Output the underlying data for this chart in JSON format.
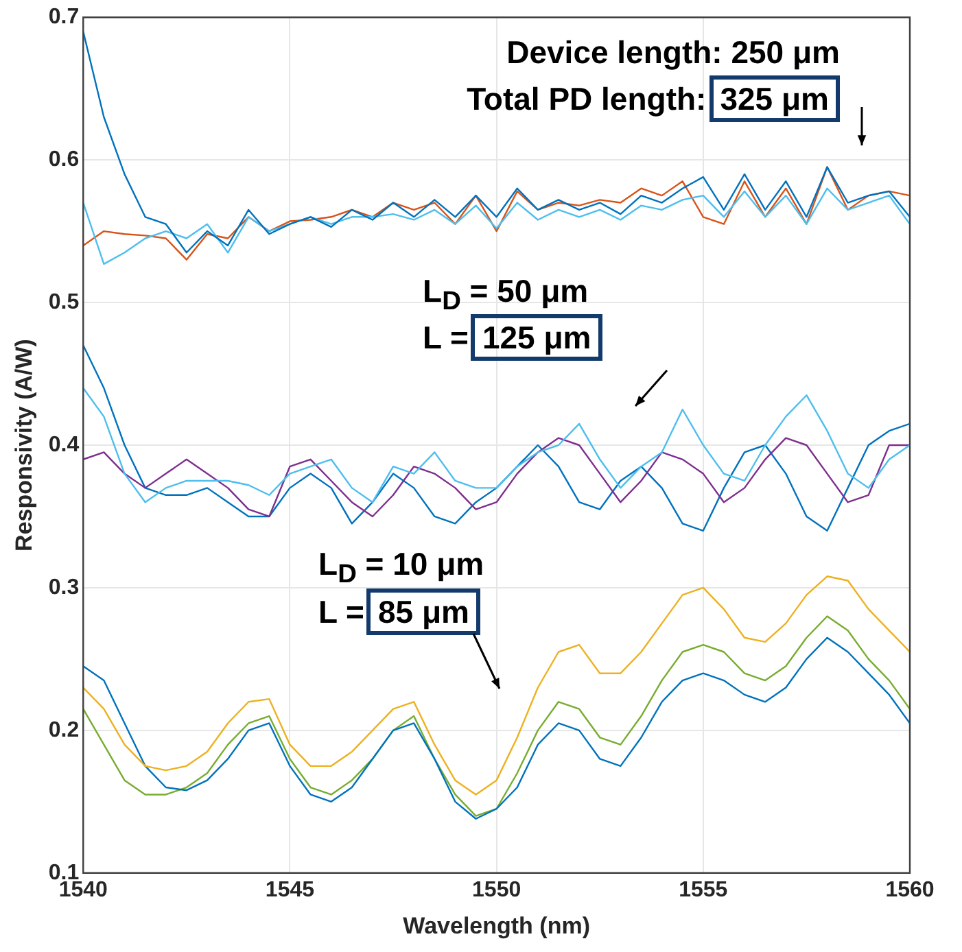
{
  "chart_data": {
    "type": "line",
    "xlabel": "Wavelength (nm)",
    "ylabel": "Responsivity (A/W)",
    "x": [
      1540,
      1540.5,
      1541,
      1541.5,
      1542,
      1542.5,
      1543,
      1543.5,
      1544,
      1544.5,
      1545,
      1545.5,
      1546,
      1546.5,
      1547,
      1547.5,
      1548,
      1548.5,
      1549,
      1549.5,
      1550,
      1550.5,
      1551,
      1551.5,
      1552,
      1552.5,
      1553,
      1553.5,
      1554,
      1554.5,
      1555,
      1555.5,
      1556,
      1556.5,
      1557,
      1557.5,
      1558,
      1558.5,
      1559,
      1559.5,
      1560
    ],
    "xlim": [
      1540,
      1560
    ],
    "xticks": [
      1540,
      1545,
      1550,
      1555,
      1560
    ],
    "ylim": [
      0.1,
      0.7
    ],
    "yticks": [
      0.1,
      0.2,
      0.3,
      0.4,
      0.5,
      0.6,
      0.7
    ],
    "grid": true,
    "legend": false,
    "marker": "none",
    "line_style": "solid",
    "series": [
      {
        "color": "#0072bd",
        "values": [
          0.69,
          0.63,
          0.59,
          0.56,
          0.555,
          0.535,
          0.55,
          0.54,
          0.565,
          0.548,
          0.555,
          0.56,
          0.553,
          0.565,
          0.558,
          0.57,
          0.56,
          0.572,
          0.56,
          0.575,
          0.56,
          0.58,
          0.565,
          0.572,
          0.565,
          0.57,
          0.562,
          0.575,
          0.57,
          0.58,
          0.588,
          0.565,
          0.59,
          0.565,
          0.585,
          0.56,
          0.595,
          0.57,
          0.575,
          0.578,
          0.56
        ]
      },
      {
        "color": "#4dbeee",
        "values": [
          0.57,
          0.527,
          0.535,
          0.545,
          0.55,
          0.545,
          0.555,
          0.535,
          0.56,
          0.55,
          0.555,
          0.56,
          0.555,
          0.56,
          0.56,
          0.562,
          0.558,
          0.565,
          0.555,
          0.568,
          0.552,
          0.57,
          0.558,
          0.565,
          0.56,
          0.565,
          0.558,
          0.568,
          0.565,
          0.572,
          0.575,
          0.56,
          0.578,
          0.56,
          0.575,
          0.555,
          0.58,
          0.565,
          0.57,
          0.575,
          0.555
        ]
      },
      {
        "color": "#d95319",
        "values": [
          0.54,
          0.55,
          0.548,
          0.547,
          0.545,
          0.53,
          0.548,
          0.545,
          0.56,
          0.55,
          0.557,
          0.558,
          0.56,
          0.565,
          0.56,
          0.57,
          0.565,
          0.57,
          0.555,
          0.575,
          0.55,
          0.578,
          0.565,
          0.57,
          0.568,
          0.572,
          0.57,
          0.58,
          0.575,
          0.585,
          0.56,
          0.555,
          0.585,
          0.56,
          0.58,
          0.555,
          0.595,
          0.565,
          0.575,
          0.578,
          0.575
        ]
      },
      {
        "color": "#4dbeee",
        "values": [
          0.44,
          0.42,
          0.38,
          0.36,
          0.37,
          0.375,
          0.375,
          0.375,
          0.372,
          0.365,
          0.38,
          0.385,
          0.39,
          0.37,
          0.36,
          0.385,
          0.38,
          0.395,
          0.375,
          0.37,
          0.37,
          0.385,
          0.395,
          0.4,
          0.415,
          0.39,
          0.37,
          0.385,
          0.395,
          0.425,
          0.4,
          0.38,
          0.375,
          0.4,
          0.42,
          0.435,
          0.41,
          0.38,
          0.37,
          0.39,
          0.4
        ]
      },
      {
        "color": "#7e2f8e",
        "values": [
          0.39,
          0.395,
          0.38,
          0.37,
          0.38,
          0.39,
          0.38,
          0.37,
          0.355,
          0.35,
          0.385,
          0.39,
          0.375,
          0.36,
          0.35,
          0.365,
          0.385,
          0.38,
          0.37,
          0.355,
          0.36,
          0.38,
          0.395,
          0.405,
          0.4,
          0.38,
          0.36,
          0.375,
          0.395,
          0.39,
          0.38,
          0.36,
          0.37,
          0.39,
          0.405,
          0.4,
          0.38,
          0.36,
          0.365,
          0.4,
          0.4
        ]
      },
      {
        "color": "#0072bd",
        "values": [
          0.47,
          0.44,
          0.4,
          0.37,
          0.365,
          0.365,
          0.37,
          0.36,
          0.35,
          0.35,
          0.37,
          0.38,
          0.37,
          0.345,
          0.36,
          0.38,
          0.37,
          0.35,
          0.345,
          0.36,
          0.37,
          0.385,
          0.4,
          0.385,
          0.36,
          0.355,
          0.375,
          0.385,
          0.37,
          0.345,
          0.34,
          0.37,
          0.395,
          0.4,
          0.38,
          0.35,
          0.34,
          0.37,
          0.4,
          0.41,
          0.415
        ]
      },
      {
        "color": "#edb120",
        "values": [
          0.23,
          0.215,
          0.19,
          0.175,
          0.172,
          0.175,
          0.185,
          0.205,
          0.22,
          0.222,
          0.19,
          0.175,
          0.175,
          0.185,
          0.2,
          0.215,
          0.22,
          0.19,
          0.165,
          0.155,
          0.165,
          0.195,
          0.23,
          0.255,
          0.26,
          0.24,
          0.24,
          0.255,
          0.275,
          0.295,
          0.3,
          0.285,
          0.265,
          0.262,
          0.275,
          0.295,
          0.308,
          0.305,
          0.285,
          0.27,
          0.255
        ]
      },
      {
        "color": "#0072bd",
        "values": [
          0.245,
          0.235,
          0.205,
          0.175,
          0.16,
          0.158,
          0.165,
          0.18,
          0.2,
          0.205,
          0.175,
          0.155,
          0.15,
          0.16,
          0.18,
          0.2,
          0.205,
          0.18,
          0.15,
          0.138,
          0.145,
          0.16,
          0.19,
          0.205,
          0.2,
          0.18,
          0.175,
          0.195,
          0.22,
          0.235,
          0.24,
          0.235,
          0.225,
          0.22,
          0.23,
          0.25,
          0.265,
          0.255,
          0.24,
          0.225,
          0.205
        ]
      },
      {
        "color": "#77ac30",
        "values": [
          0.215,
          0.19,
          0.165,
          0.155,
          0.155,
          0.16,
          0.17,
          0.19,
          0.205,
          0.21,
          0.18,
          0.16,
          0.155,
          0.165,
          0.18,
          0.2,
          0.21,
          0.18,
          0.155,
          0.14,
          0.145,
          0.17,
          0.2,
          0.22,
          0.215,
          0.195,
          0.19,
          0.21,
          0.235,
          0.255,
          0.26,
          0.255,
          0.24,
          0.235,
          0.245,
          0.265,
          0.28,
          0.27,
          0.25,
          0.235,
          0.215
        ]
      }
    ],
    "annotations": [
      "Device length: 250 μm",
      "Total PD length: 325 μm",
      "L$_{D}$ = 50 μm",
      "L = 125 μm",
      "L$_{D}$ = 10 μm",
      "L = 85 μm"
    ]
  }
}
